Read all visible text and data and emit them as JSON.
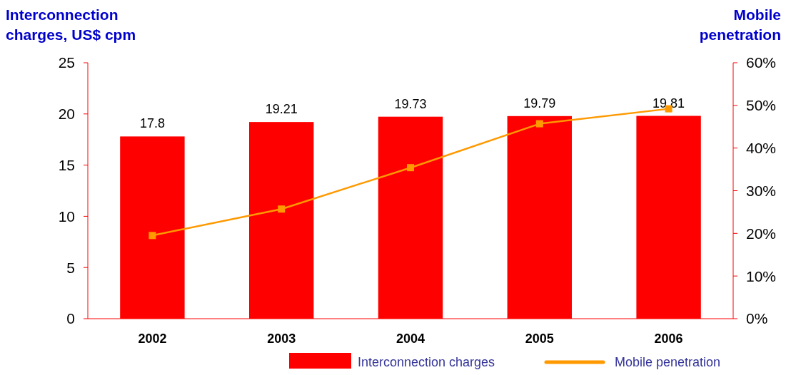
{
  "chart_data": {
    "type": "bar",
    "categories": [
      "2002",
      "2003",
      "2004",
      "2005",
      "2006"
    ],
    "ylabel": "Interconnection charges, US$ cpm",
    "y2label": "Mobile penetration",
    "ylim": [
      0,
      25
    ],
    "yticks": [
      0,
      5,
      10,
      15,
      20,
      25
    ],
    "y2lim": [
      0,
      60
    ],
    "y2ticks": [
      {
        "value": 0,
        "label": "0%"
      },
      {
        "value": 10,
        "label": "10%"
      },
      {
        "value": 20,
        "label": "20%"
      },
      {
        "value": 30,
        "label": "30%"
      },
      {
        "value": 40,
        "label": "40%"
      },
      {
        "value": 50,
        "label": "50%"
      },
      {
        "value": 60,
        "label": "60%"
      }
    ],
    "legend": "bottom",
    "grid": false,
    "series": [
      {
        "name": "Interconnection charges",
        "color": "#ff0000",
        "values": [
          17.8,
          19.21,
          19.73,
          19.79,
          19.81
        ],
        "value_labels": [
          "17.8",
          "19.21",
          "19.73",
          "19.79",
          "19.81"
        ]
      },
      {
        "name": "Mobile penetration",
        "type": "line",
        "axis": "y2",
        "color": "#ff9900",
        "marker": "square",
        "values": [
          19.5,
          25.7,
          35.4,
          45.7,
          49.2
        ]
      }
    ]
  }
}
